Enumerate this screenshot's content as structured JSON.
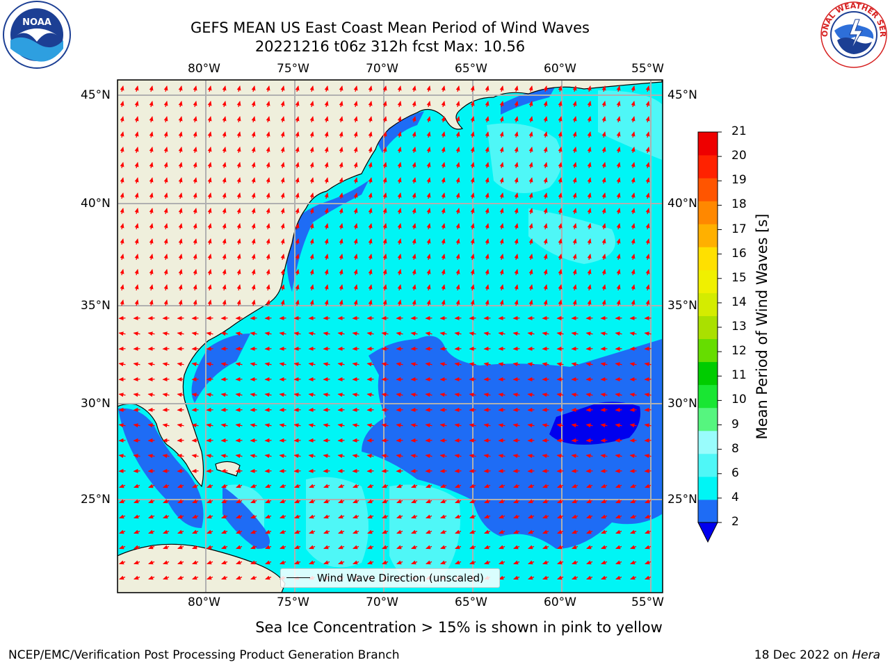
{
  "title": {
    "line1": "GEFS MEAN US East Coast Mean Period of Wind Waves",
    "line2": "20221216 t06z 312h fcst   Max: 10.56"
  },
  "map": {
    "lon_labels": [
      "80°W",
      "75°W",
      "70°W",
      "65°W",
      "60°W",
      "55°W"
    ],
    "lat_labels": [
      "45°N",
      "40°N",
      "35°N",
      "30°N",
      "25°N"
    ],
    "legend_label": "Wind Wave Direction (unscaled)"
  },
  "colorbar": {
    "title": "Mean Period of Wind Waves [s]",
    "ticks": [
      "21",
      "20",
      "19",
      "18",
      "17",
      "16",
      "15",
      "14",
      "13",
      "12",
      "11",
      "10",
      "9",
      "8",
      "6",
      "4",
      "2"
    ],
    "colors": [
      "#0000ee",
      "#1e6cf5",
      "#00f5f5",
      "#4ff7f7",
      "#99fcfc",
      "#56f57f",
      "#19e633",
      "#00cc00",
      "#66dd00",
      "#aae000",
      "#d4ec00",
      "#f0f000",
      "#ffe000",
      "#ffb000",
      "#ff8800",
      "#ff5500",
      "#ff2200",
      "#ee0000"
    ]
  },
  "footer": {
    "note": "Sea Ice Concentration > 15% is shown in pink to yellow",
    "left": "NCEP/EMC/Verification Post Processing Product Generation Branch",
    "right_prefix": "18 Dec 2022 on ",
    "right_host": "Hera"
  },
  "logos": {
    "noaa": "NOAA",
    "nws": "NATIONAL WEATHER SERVICE"
  }
}
